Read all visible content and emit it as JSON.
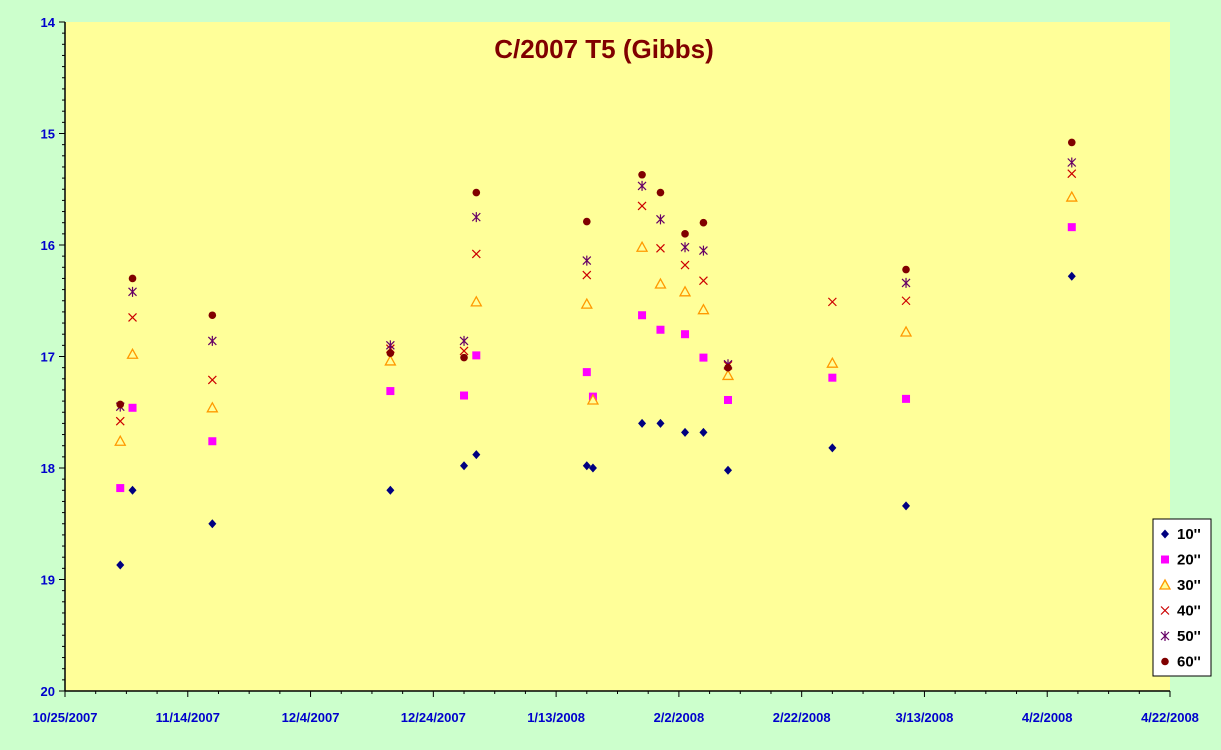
{
  "chart_data": {
    "type": "scatter",
    "title": "C/2007 T5 (Gibbs)",
    "xlabel": "",
    "ylabel": "",
    "x_axis": {
      "type": "date",
      "min": "2007-10-25",
      "max": "2008-04-22",
      "tick_labels": [
        "10/25/2007",
        "11/14/2007",
        "12/4/2007",
        "12/24/2007",
        "1/13/2008",
        "2/2/2008",
        "2/22/2008",
        "3/13/2008",
        "4/2/2008",
        "4/22/2008"
      ]
    },
    "y_axis": {
      "min": 14,
      "max": 20,
      "reversed": true,
      "tick_labels": [
        "14",
        "15",
        "16",
        "17",
        "18",
        "19",
        "20"
      ]
    },
    "grid": false,
    "legend_position": "bottom-right",
    "colors": {
      "plot_background": "#ffff99",
      "page_background": "#ccffcc",
      "axis": "#000000",
      "title": "#800000",
      "tick_labels": "#0000cc"
    },
    "series": [
      {
        "name": "10''",
        "marker": "diamond",
        "color": "#000080",
        "points": [
          {
            "x": "2007-11-03",
            "y": 18.87
          },
          {
            "x": "2007-11-05",
            "y": 18.2
          },
          {
            "x": "2007-11-18",
            "y": 18.5
          },
          {
            "x": "2007-12-17",
            "y": 18.2
          },
          {
            "x": "2007-12-29",
            "y": 17.98
          },
          {
            "x": "2007-12-31",
            "y": 17.88
          },
          {
            "x": "2008-01-18",
            "y": 17.98
          },
          {
            "x": "2008-01-19",
            "y": 18.0
          },
          {
            "x": "2008-01-27",
            "y": 17.6
          },
          {
            "x": "2008-01-30",
            "y": 17.6
          },
          {
            "x": "2008-02-03",
            "y": 17.68
          },
          {
            "x": "2008-02-06",
            "y": 17.68
          },
          {
            "x": "2008-02-10",
            "y": 18.02
          },
          {
            "x": "2008-02-27",
            "y": 17.82
          },
          {
            "x": "2008-03-10",
            "y": 18.34
          },
          {
            "x": "2008-04-06",
            "y": 16.28
          }
        ]
      },
      {
        "name": "20''",
        "marker": "square",
        "color": "#ff00ff",
        "points": [
          {
            "x": "2007-11-03",
            "y": 18.18
          },
          {
            "x": "2007-11-05",
            "y": 17.46
          },
          {
            "x": "2007-11-18",
            "y": 17.76
          },
          {
            "x": "2007-12-17",
            "y": 17.31
          },
          {
            "x": "2007-12-29",
            "y": 17.35
          },
          {
            "x": "2007-12-31",
            "y": 16.99
          },
          {
            "x": "2008-01-18",
            "y": 17.14
          },
          {
            "x": "2008-01-19",
            "y": 17.36
          },
          {
            "x": "2008-01-27",
            "y": 16.63
          },
          {
            "x": "2008-01-30",
            "y": 16.76
          },
          {
            "x": "2008-02-03",
            "y": 16.8
          },
          {
            "x": "2008-02-06",
            "y": 17.01
          },
          {
            "x": "2008-02-10",
            "y": 17.39
          },
          {
            "x": "2008-02-27",
            "y": 17.19
          },
          {
            "x": "2008-03-10",
            "y": 17.38
          },
          {
            "x": "2008-04-06",
            "y": 15.84
          }
        ]
      },
      {
        "name": "30''",
        "marker": "triangle",
        "color": "#ff9900",
        "points": [
          {
            "x": "2007-11-03",
            "y": 17.76
          },
          {
            "x": "2007-11-05",
            "y": 16.98
          },
          {
            "x": "2007-11-18",
            "y": 17.46
          },
          {
            "x": "2007-12-17",
            "y": 17.04
          },
          {
            "x": "2007-12-31",
            "y": 16.51
          },
          {
            "x": "2008-01-18",
            "y": 16.53
          },
          {
            "x": "2008-01-19",
            "y": 17.39
          },
          {
            "x": "2008-01-27",
            "y": 16.02
          },
          {
            "x": "2008-01-30",
            "y": 16.35
          },
          {
            "x": "2008-02-03",
            "y": 16.42
          },
          {
            "x": "2008-02-06",
            "y": 16.58
          },
          {
            "x": "2008-02-10",
            "y": 17.17
          },
          {
            "x": "2008-02-27",
            "y": 17.06
          },
          {
            "x": "2008-03-10",
            "y": 16.78
          },
          {
            "x": "2008-04-06",
            "y": 15.57
          }
        ]
      },
      {
        "name": "40''",
        "marker": "x",
        "color": "#cc0000",
        "points": [
          {
            "x": "2007-11-03",
            "y": 17.58
          },
          {
            "x": "2007-11-05",
            "y": 16.65
          },
          {
            "x": "2007-11-18",
            "y": 17.21
          },
          {
            "x": "2007-12-17",
            "y": 16.93
          },
          {
            "x": "2007-12-29",
            "y": 16.95
          },
          {
            "x": "2007-12-31",
            "y": 16.08
          },
          {
            "x": "2008-01-18",
            "y": 16.27
          },
          {
            "x": "2008-01-27",
            "y": 15.65
          },
          {
            "x": "2008-01-30",
            "y": 16.03
          },
          {
            "x": "2008-02-03",
            "y": 16.18
          },
          {
            "x": "2008-02-06",
            "y": 16.32
          },
          {
            "x": "2008-02-10",
            "y": 17.08
          },
          {
            "x": "2008-02-27",
            "y": 16.51
          },
          {
            "x": "2008-03-10",
            "y": 16.5
          },
          {
            "x": "2008-04-06",
            "y": 15.36
          }
        ]
      },
      {
        "name": "50''",
        "marker": "asterisk",
        "color": "#660066",
        "points": [
          {
            "x": "2007-11-03",
            "y": 17.45
          },
          {
            "x": "2007-11-05",
            "y": 16.42
          },
          {
            "x": "2007-11-18",
            "y": 16.86
          },
          {
            "x": "2007-12-17",
            "y": 16.9
          },
          {
            "x": "2007-12-29",
            "y": 16.86
          },
          {
            "x": "2007-12-31",
            "y": 15.75
          },
          {
            "x": "2008-01-18",
            "y": 16.14
          },
          {
            "x": "2008-01-27",
            "y": 15.47
          },
          {
            "x": "2008-01-30",
            "y": 15.77
          },
          {
            "x": "2008-02-03",
            "y": 16.02
          },
          {
            "x": "2008-02-06",
            "y": 16.05
          },
          {
            "x": "2008-02-10",
            "y": 17.07
          },
          {
            "x": "2008-03-10",
            "y": 16.34
          },
          {
            "x": "2008-04-06",
            "y": 15.26
          }
        ]
      },
      {
        "name": "60''",
        "marker": "circle",
        "color": "#800000",
        "points": [
          {
            "x": "2007-11-03",
            "y": 17.43
          },
          {
            "x": "2007-11-05",
            "y": 16.3
          },
          {
            "x": "2007-11-18",
            "y": 16.63
          },
          {
            "x": "2007-12-17",
            "y": 16.97
          },
          {
            "x": "2007-12-29",
            "y": 17.01
          },
          {
            "x": "2007-12-31",
            "y": 15.53
          },
          {
            "x": "2008-01-18",
            "y": 15.79
          },
          {
            "x": "2008-01-27",
            "y": 15.37
          },
          {
            "x": "2008-01-30",
            "y": 15.53
          },
          {
            "x": "2008-02-03",
            "y": 15.9
          },
          {
            "x": "2008-02-06",
            "y": 15.8
          },
          {
            "x": "2008-02-10",
            "y": 17.1
          },
          {
            "x": "2008-03-10",
            "y": 16.22
          },
          {
            "x": "2008-04-06",
            "y": 15.08
          }
        ]
      }
    ]
  }
}
